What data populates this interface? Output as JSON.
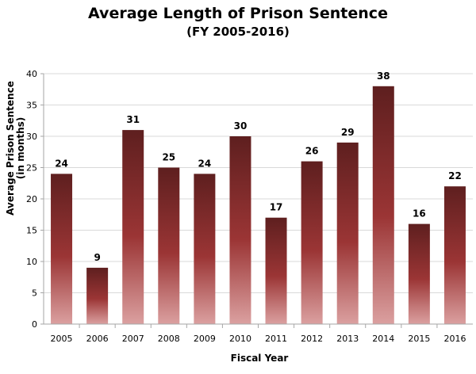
{
  "chart_data": {
    "type": "bar",
    "title": "Average Length of Prison Sentence",
    "subtitle": "(FY 2005-2016)",
    "xlabel": "Fiscal Year",
    "ylabel_line1": "Average Prison Sentence",
    "ylabel_line2": "(in months)",
    "categories": [
      "2005",
      "2006",
      "2007",
      "2008",
      "2009",
      "2010",
      "2011",
      "2012",
      "2013",
      "2014",
      "2015",
      "2016"
    ],
    "values": [
      24,
      9,
      31,
      25,
      24,
      30,
      17,
      26,
      29,
      38,
      16,
      22
    ],
    "value_labels": [
      "24",
      "9",
      "31",
      "25",
      "24",
      "30",
      "17",
      "26",
      "29",
      "38",
      "16",
      "22"
    ],
    "ylim": [
      0,
      40
    ],
    "yticks": [
      0,
      5,
      10,
      15,
      20,
      25,
      30,
      35,
      40
    ],
    "ytick_labels": [
      "0",
      "5",
      "10",
      "15",
      "20",
      "25",
      "30",
      "35",
      "40"
    ],
    "grid": true,
    "legend": false,
    "colors": {
      "bar_top": "#5e1f1f",
      "bar_mid": "#9b3535",
      "bar_bottom": "#dba0a0",
      "grid": "#d9d9d9",
      "axis": "#a6a6a6"
    }
  }
}
